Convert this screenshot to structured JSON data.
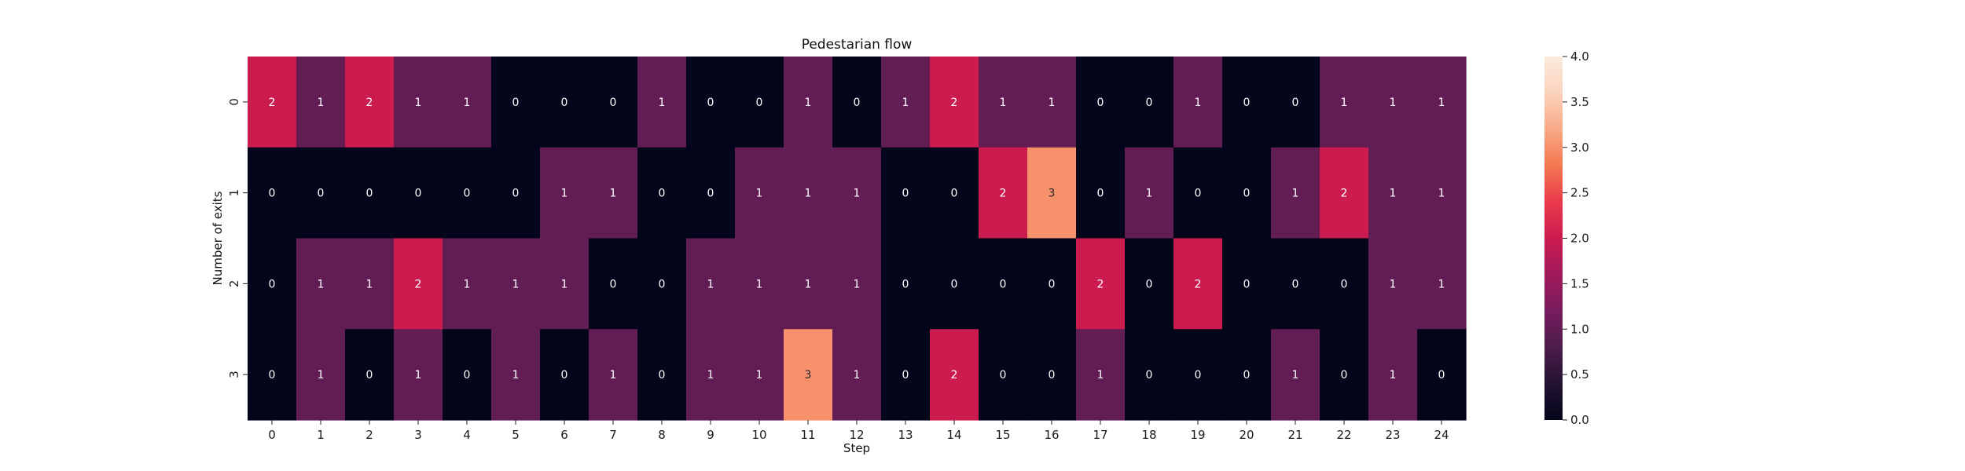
{
  "chart_data": {
    "type": "heatmap",
    "title": "Pedestarian flow",
    "xlabel": "Step",
    "ylabel": "Number of exits",
    "x_categories": [
      "0",
      "1",
      "2",
      "3",
      "4",
      "5",
      "6",
      "7",
      "8",
      "9",
      "10",
      "11",
      "12",
      "13",
      "14",
      "15",
      "16",
      "17",
      "18",
      "19",
      "20",
      "21",
      "22",
      "23",
      "24"
    ],
    "y_categories": [
      "0",
      "1",
      "2",
      "3"
    ],
    "values": [
      [
        2,
        1,
        2,
        1,
        1,
        0,
        0,
        0,
        1,
        0,
        0,
        1,
        0,
        1,
        2,
        1,
        1,
        0,
        0,
        1,
        0,
        0,
        1,
        1,
        1
      ],
      [
        0,
        0,
        0,
        0,
        0,
        0,
        1,
        1,
        0,
        0,
        1,
        1,
        1,
        0,
        0,
        2,
        3,
        0,
        1,
        0,
        0,
        1,
        2,
        1,
        1
      ],
      [
        0,
        1,
        1,
        2,
        1,
        1,
        1,
        0,
        0,
        1,
        1,
        1,
        1,
        0,
        0,
        0,
        0,
        2,
        0,
        2,
        0,
        0,
        0,
        1,
        1
      ],
      [
        0,
        1,
        0,
        1,
        0,
        1,
        0,
        1,
        0,
        1,
        1,
        3,
        1,
        0,
        2,
        0,
        0,
        1,
        0,
        0,
        0,
        1,
        0,
        1,
        0
      ]
    ],
    "annotations_shown": true,
    "colorbar": {
      "colormap": "rocket",
      "vmin": 0.0,
      "vmax": 4.0,
      "ticks": [
        "0.0",
        "0.5",
        "1.0",
        "1.5",
        "2.0",
        "2.5",
        "3.0",
        "3.5",
        "4.0"
      ],
      "colors": [
        "#03051a",
        "#221331",
        "#4c1d4b",
        "#781c5d",
        "#a11a5b",
        "#cb1b4f",
        "#ea394b",
        "#f37751",
        "#f8aa86",
        "#fbd3bd",
        "#faebdd"
      ]
    },
    "grid": false,
    "legend": "colorbar-right"
  }
}
